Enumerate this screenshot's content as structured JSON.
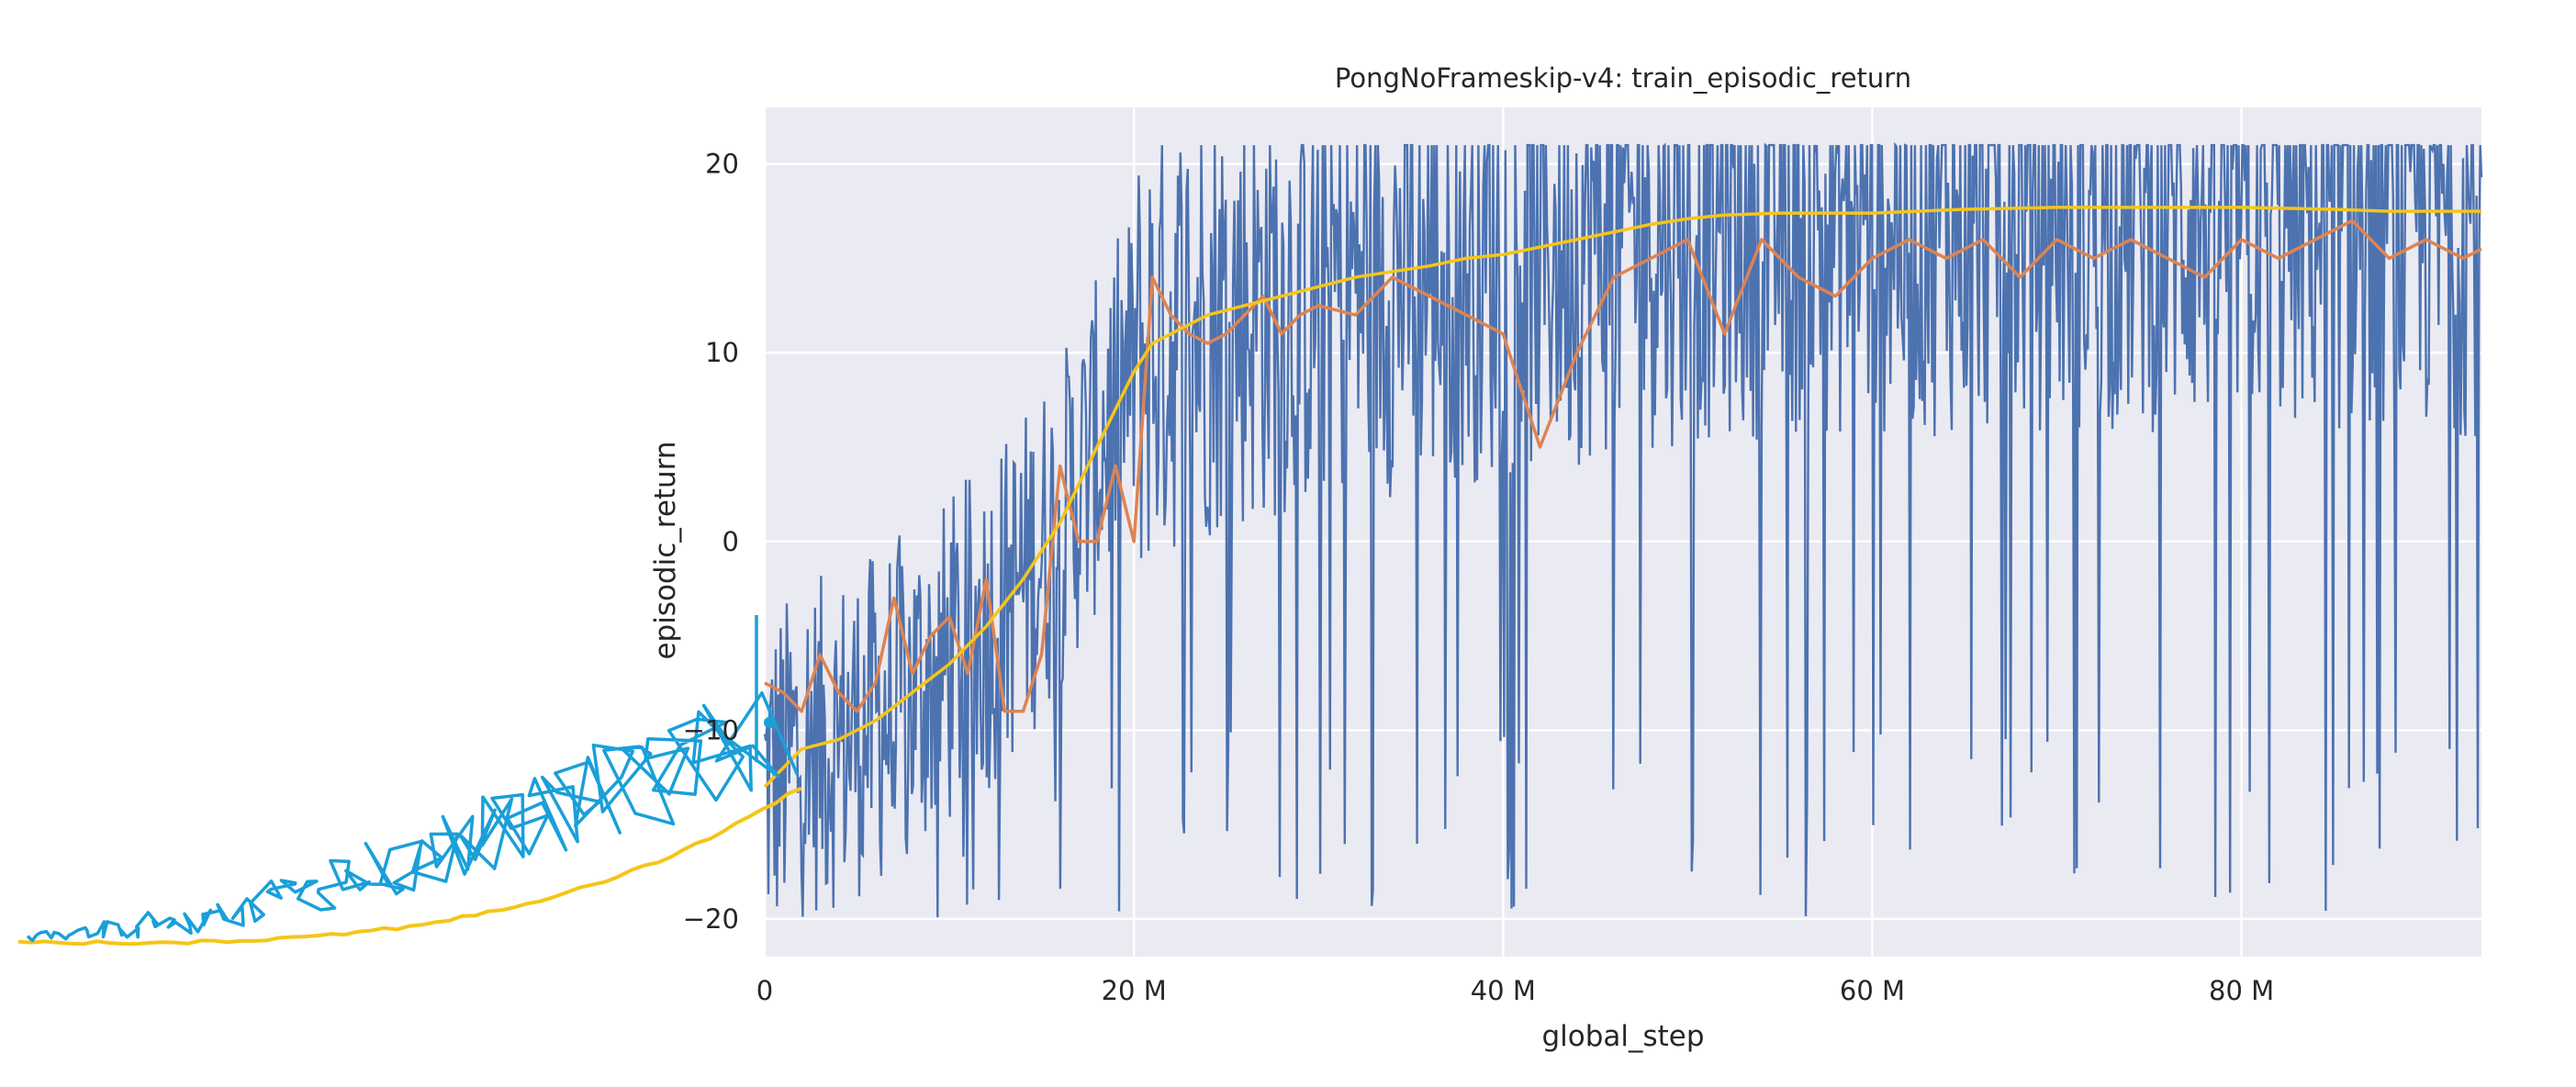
{
  "chart_data": {
    "type": "line",
    "title": "PongNoFrameskip-v4: train_episodic_return",
    "xlabel": "global_step",
    "ylabel": "episodic_return",
    "xlim": [
      0,
      93000000
    ],
    "ylim": [
      -22,
      23
    ],
    "x_ticks": [
      0,
      20000000,
      40000000,
      60000000,
      80000000
    ],
    "x_tick_labels": [
      "0",
      "20 M",
      "40 M",
      "60 M",
      "80 M"
    ],
    "y_ticks": [
      -20,
      -10,
      0,
      10,
      20
    ],
    "y_tick_labels": [
      "−20",
      "−10",
      "0",
      "10",
      "20"
    ],
    "grid": true,
    "background": "#eaeaf2",
    "colors": {
      "raw": "#4c72b0",
      "mean": "#dd8452",
      "smooth": "#f5c518",
      "overlay": "#1a9fd9"
    },
    "series": [
      {
        "x": [
          0,
          1,
          2,
          3,
          4,
          5,
          6,
          7,
          8,
          9,
          10,
          11,
          12,
          13,
          14,
          15,
          16,
          17,
          18,
          19,
          20,
          21,
          22,
          23,
          24,
          25,
          26,
          27,
          28,
          29,
          30,
          32,
          34,
          36,
          38,
          40,
          42,
          44,
          46,
          48,
          50,
          52,
          54,
          56,
          58,
          60,
          62,
          64,
          66,
          68,
          70,
          72,
          74,
          76,
          78,
          80,
          82,
          84,
          86,
          88,
          90,
          92,
          93
        ],
        "values": [
          -7.5,
          -8,
          -9,
          -6,
          -8,
          -9,
          -7.5,
          -3,
          -7,
          -5,
          -4,
          -7,
          -2,
          -9,
          -9,
          -6,
          4,
          0,
          0,
          4,
          0,
          14,
          12,
          11,
          10.5,
          11,
          12,
          13,
          11,
          12,
          12.5,
          12,
          14,
          13,
          12,
          11,
          5,
          10,
          14,
          15,
          16,
          11,
          16,
          14,
          13,
          15,
          16,
          15,
          16,
          14,
          16,
          15,
          16,
          15,
          14,
          16,
          15,
          16,
          17,
          15,
          16,
          15,
          15.5
        ]
      },
      {
        "x": [
          0,
          2,
          4,
          6,
          8,
          10,
          12,
          14,
          16,
          17,
          18,
          19,
          20,
          21,
          22,
          24,
          26,
          28,
          30,
          32,
          34,
          36,
          38,
          40,
          42,
          44,
          46,
          48,
          50,
          52,
          55,
          60,
          65,
          70,
          75,
          80,
          85,
          88,
          90,
          93
        ],
        "values": [
          -13,
          -11,
          -10.5,
          -9.5,
          -8,
          -6.5,
          -4.5,
          -2,
          1,
          3,
          5,
          7,
          9,
          10.5,
          11,
          12,
          12.5,
          13,
          13.5,
          14,
          14.3,
          14.6,
          15,
          15.2,
          15.6,
          16,
          16.4,
          16.8,
          17.1,
          17.3,
          17.4,
          17.4,
          17.6,
          17.7,
          17.7,
          17.7,
          17.6,
          17.5,
          17.5,
          17.5
        ]
      }
    ]
  }
}
